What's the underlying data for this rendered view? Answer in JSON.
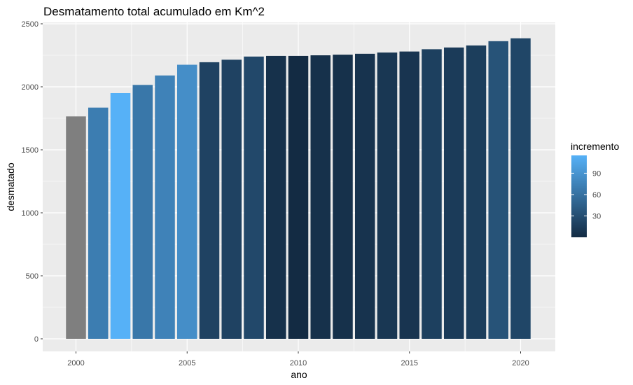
{
  "chart_data": {
    "type": "bar",
    "title": "Desmatamento total acumulado em Km^2",
    "xlabel": "ano",
    "ylabel": "desmatado",
    "x": [
      2000,
      2001,
      2002,
      2003,
      2004,
      2005,
      2006,
      2007,
      2008,
      2009,
      2010,
      2011,
      2012,
      2013,
      2014,
      2015,
      2016,
      2017,
      2018,
      2019,
      2020
    ],
    "values": [
      1765,
      1835,
      1950,
      2015,
      2090,
      2175,
      2195,
      2215,
      2240,
      2245,
      2245,
      2250,
      2255,
      2262,
      2272,
      2280,
      2298,
      2312,
      2328,
      2362,
      2385
    ],
    "fill_value": [
      null,
      70,
      115,
      65,
      75,
      85,
      20,
      20,
      25,
      5,
      0,
      5,
      5,
      7,
      10,
      8,
      18,
      14,
      16,
      34,
      23
    ],
    "ylim": [
      0,
      2500
    ],
    "yticks": [
      0,
      500,
      1000,
      1500,
      2000,
      2500
    ],
    "xticks": [
      2000,
      2005,
      2010,
      2015,
      2020
    ],
    "grid": true,
    "na_color": "#7f7f7f",
    "legend": {
      "title": "incremento",
      "position": "right",
      "ticks": [
        30,
        60,
        90
      ],
      "range": [
        0,
        115
      ],
      "color_low": "#132B43",
      "color_high": "#56B1F7"
    }
  }
}
